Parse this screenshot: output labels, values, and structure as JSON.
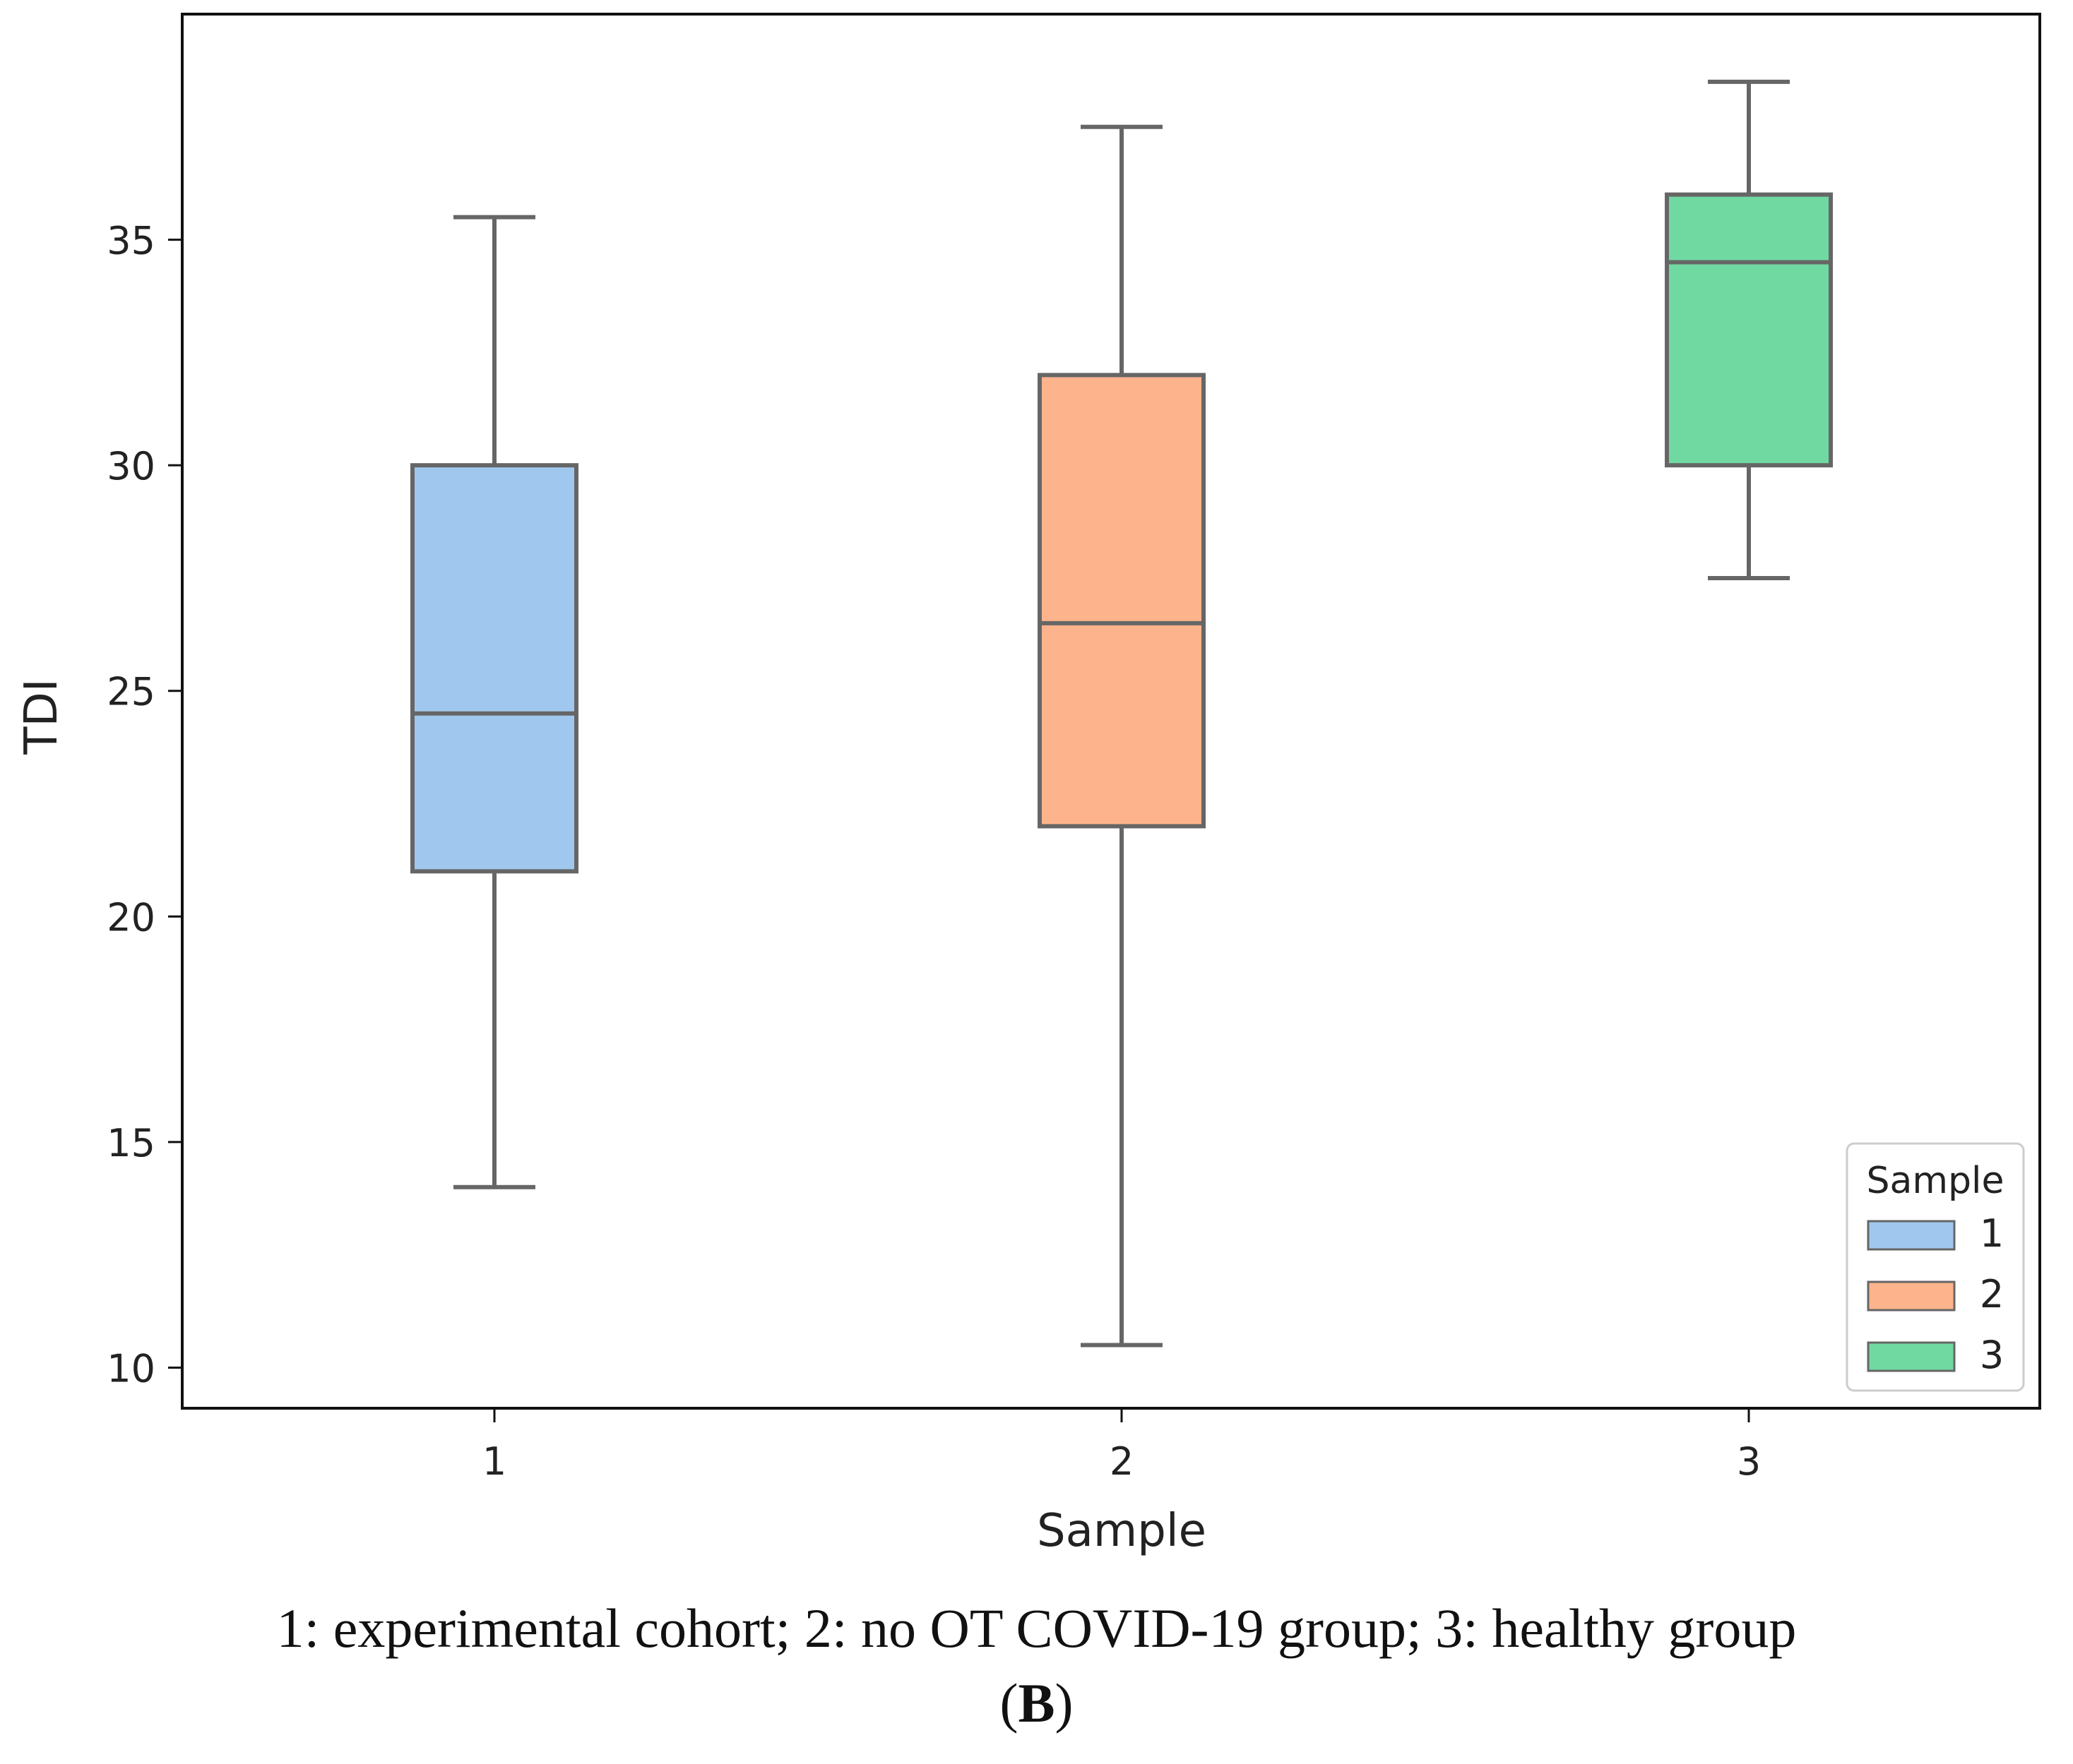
{
  "chart_data": {
    "type": "box",
    "xlabel": "Sample",
    "ylabel": "TDI",
    "ylim": [
      9.1,
      40.0
    ],
    "yticks": [
      10,
      15,
      20,
      25,
      30,
      35
    ],
    "categories": [
      "1",
      "2",
      "3"
    ],
    "boxes": [
      {
        "name": "1",
        "whisker_low": 14.0,
        "q1": 21.0,
        "median": 24.5,
        "q3": 30.0,
        "whisker_high": 35.5,
        "color": "#a0c8ee"
      },
      {
        "name": "2",
        "whisker_low": 10.5,
        "q1": 22.0,
        "median": 26.5,
        "q3": 32.0,
        "whisker_high": 37.5,
        "color": "#fdb48c"
      },
      {
        "name": "3",
        "whisker_low": 27.5,
        "q1": 30.0,
        "median": 34.5,
        "q3": 36.0,
        "whisker_high": 38.5,
        "color": "#70d9a2"
      }
    ],
    "legend": {
      "title": "Sample",
      "position": "bottom-right",
      "entries": [
        {
          "label": "1",
          "color": "#a0c8ee"
        },
        {
          "label": "2",
          "color": "#fdb48c"
        },
        {
          "label": "3",
          "color": "#70d9a2"
        }
      ]
    },
    "line_color": "#666666"
  },
  "caption": {
    "text": "1: experimental cohort; 2: no OT COVID-19 group; 3: healthy group",
    "panel_label": "B"
  }
}
